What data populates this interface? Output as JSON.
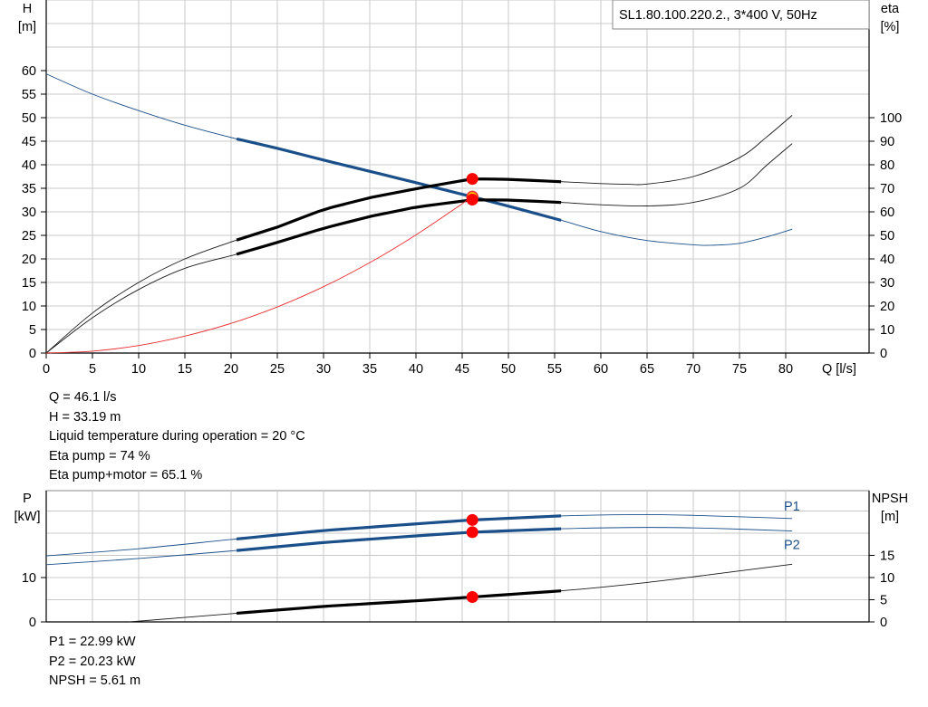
{
  "chart_data": [
    {
      "type": "line",
      "title": "SL1.80.100.220.2., 3*400 V, 50Hz",
      "xlabel": "Q [l/s]",
      "ylabel_left": [
        "H",
        "[m]"
      ],
      "ylabel_right": [
        "eta",
        "[%]"
      ],
      "xlim": [
        0,
        85
      ],
      "ylim_left": [
        0,
        60
      ],
      "ylim_right": [
        0,
        100
      ],
      "x_ticks": [
        0,
        5,
        10,
        15,
        20,
        25,
        30,
        35,
        40,
        45,
        50,
        55,
        60,
        65,
        70,
        75,
        80
      ],
      "y_left_ticks": [
        0,
        5,
        10,
        15,
        20,
        25,
        30,
        35,
        40,
        45,
        50,
        55,
        60
      ],
      "y_right_ticks": [
        0,
        10,
        20,
        30,
        40,
        50,
        60,
        70,
        80,
        90,
        100
      ],
      "grid": true,
      "series": [
        {
          "axis": "left",
          "color": "#1a4f8a",
          "x": [
            0,
            5,
            10,
            15,
            20.6,
            25,
            30,
            35,
            40,
            46.1,
            50,
            55.7,
            60,
            65,
            70,
            72,
            75,
            78,
            80.7
          ],
          "y": [
            59.3,
            55.0,
            51.5,
            48.4,
            45.5,
            43.5,
            41.0,
            38.6,
            36.2,
            33.19,
            31.2,
            28.2,
            25.8,
            23.9,
            23.0,
            22.9,
            23.3,
            24.7,
            26.3
          ],
          "duty_range": [
            20.6,
            55.7
          ]
        },
        {
          "axis": "right",
          "color": "#1a1a1a",
          "x": [
            0,
            5,
            10,
            15,
            20.6,
            25,
            30,
            35,
            40,
            46.1,
            50,
            55.7,
            60,
            63,
            65,
            70,
            75,
            78,
            80.7
          ],
          "y": [
            0,
            17,
            30,
            40,
            48,
            53.5,
            61,
            66,
            69.8,
            74,
            73.8,
            72.8,
            72.0,
            71.7,
            71.8,
            75,
            83,
            92,
            101
          ],
          "duty_range": [
            20.6,
            55.7
          ]
        },
        {
          "axis": "right",
          "color": "#1a1a1a",
          "x": [
            0,
            5,
            10,
            15,
            20.6,
            25,
            30,
            35,
            40,
            46.1,
            50,
            55.7,
            60,
            65,
            70,
            75,
            78,
            80.7
          ],
          "y": [
            0,
            15,
            27,
            36,
            42,
            47,
            53,
            58,
            62,
            65.1,
            65,
            64,
            63,
            62.5,
            64,
            70,
            80,
            89
          ],
          "duty_range": [
            20.6,
            55.7
          ]
        },
        {
          "axis": "left",
          "color": "#e83030",
          "x": [
            0,
            5,
            10,
            15,
            20,
            25,
            30,
            35,
            40,
            46.1
          ],
          "y": [
            0,
            0.4,
            1.6,
            3.6,
            6.3,
            9.8,
            14.1,
            19.2,
            25.1,
            33.19
          ]
        }
      ],
      "markers": [
        {
          "axis": "left",
          "x": 46.1,
          "y": 37.0,
          "kind": "dot"
        },
        {
          "axis": "left",
          "x": 46.1,
          "y": 33.19,
          "kind": "ring"
        },
        {
          "axis": "left",
          "x": 46.1,
          "y": 32.6,
          "kind": "dot"
        }
      ],
      "legend_box_position": "top-right"
    },
    {
      "type": "line",
      "xlabel": "",
      "ylabel_left": [
        "P",
        "[kW]"
      ],
      "ylabel_right": [
        "NPSH",
        "[m]"
      ],
      "xlim": [
        0,
        85
      ],
      "ylim_left": [
        0,
        28.5
      ],
      "ylim_right": [
        0,
        25
      ],
      "y_left_ticks": [
        0,
        10
      ],
      "y_right_ticks": [
        0,
        5,
        10,
        15
      ],
      "grid": true,
      "series": [
        {
          "name": "P1",
          "axis": "left",
          "color": "#1a4f8a",
          "x": [
            0,
            10,
            20.6,
            30,
            40,
            46.1,
            55.7,
            65,
            72,
            80.7
          ],
          "y": [
            14.9,
            16.5,
            18.7,
            20.6,
            22.1,
            22.99,
            23.9,
            24.2,
            23.9,
            23.3
          ],
          "duty_range": [
            20.6,
            55.7
          ]
        },
        {
          "name": "P2",
          "axis": "left",
          "color": "#1a4f8a",
          "x": [
            0,
            10,
            20.6,
            30,
            40,
            46.1,
            55.7,
            65,
            72,
            80.7
          ],
          "y": [
            12.9,
            14.3,
            16.1,
            17.9,
            19.4,
            20.23,
            21.0,
            21.3,
            21.1,
            20.5
          ],
          "duty_range": [
            20.6,
            55.7
          ]
        },
        {
          "axis": "right",
          "color": "#1a1a1a",
          "x": [
            9,
            20.6,
            30,
            40,
            46.1,
            55.7,
            65,
            72,
            80.7
          ],
          "y": [
            0,
            1.95,
            3.5,
            4.75,
            5.61,
            7.0,
            8.9,
            10.7,
            13.0
          ],
          "duty_range": [
            20.6,
            55.7
          ]
        }
      ],
      "markers": [
        {
          "axis": "left",
          "x": 46.1,
          "y": 22.99,
          "kind": "dot"
        },
        {
          "axis": "left",
          "x": 46.1,
          "y": 20.23,
          "kind": "dot"
        },
        {
          "axis": "right",
          "x": 46.1,
          "y": 5.61,
          "kind": "dot"
        }
      ]
    }
  ],
  "operating_point": [
    "Q = 46.1 l/s",
    "H = 33.19 m",
    "Liquid temperature during operation = 20 °C",
    "Eta pump = 74 %",
    "Eta pump+motor = 65.1 %"
  ],
  "power_results": [
    "P1 = 22.99 kW",
    "P2 = 20.23 kW",
    "NPSH = 5.61 m"
  ]
}
